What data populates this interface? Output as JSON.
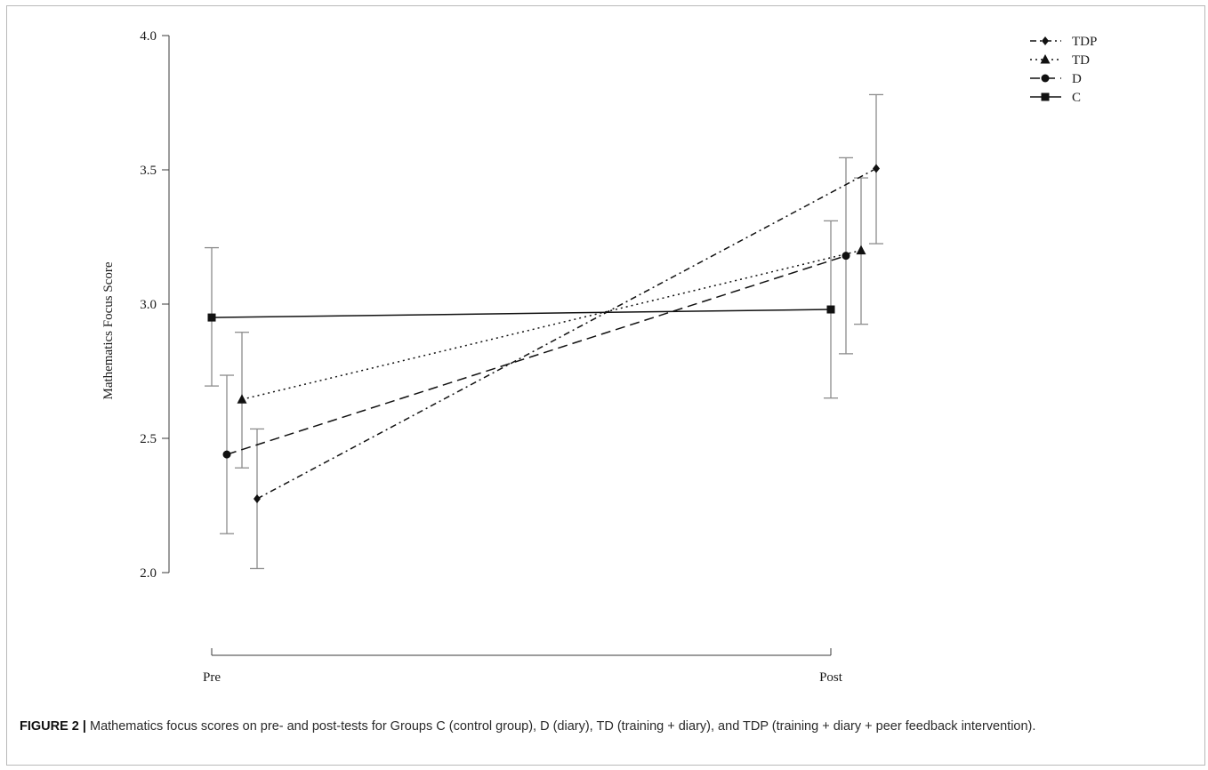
{
  "figure": {
    "label": "FIGURE 2 |",
    "caption": "Mathematics focus scores on pre- and post-tests for Groups C (control group), D (diary), TD (training + diary), and TDP (training + diary + peer feedback intervention)."
  },
  "chart_data": {
    "type": "line",
    "x_categories": [
      "Pre",
      "Post"
    ],
    "ylabel": "Mathematics Focus Score",
    "xlabel": "",
    "ylim": [
      2.0,
      4.0
    ],
    "y_ticks": [
      "2.0",
      "2.5",
      "3.0",
      "3.5",
      "4.0"
    ],
    "y_tick_values": [
      2.0,
      2.5,
      3.0,
      3.5,
      4.0
    ],
    "grid": false,
    "legend_position": "top-right",
    "error_bars": true,
    "series": [
      {
        "name": "TDP",
        "marker": "diamond",
        "line_style": "dashdot",
        "values": [
          2.275,
          3.505
        ],
        "err_low": [
          2.015,
          3.225
        ],
        "err_high": [
          2.535,
          3.78
        ]
      },
      {
        "name": "TD",
        "marker": "triangle",
        "line_style": "dotted",
        "values": [
          2.645,
          3.2
        ],
        "err_low": [
          2.39,
          2.925
        ],
        "err_high": [
          2.895,
          3.47
        ]
      },
      {
        "name": "D",
        "marker": "circle",
        "line_style": "dashed",
        "values": [
          2.44,
          3.18
        ],
        "err_low": [
          2.145,
          2.815
        ],
        "err_high": [
          2.735,
          3.545
        ]
      },
      {
        "name": "C",
        "marker": "square",
        "line_style": "solid",
        "values": [
          2.95,
          2.98
        ],
        "err_low": [
          2.695,
          2.65
        ],
        "err_high": [
          3.21,
          3.31
        ]
      }
    ]
  }
}
